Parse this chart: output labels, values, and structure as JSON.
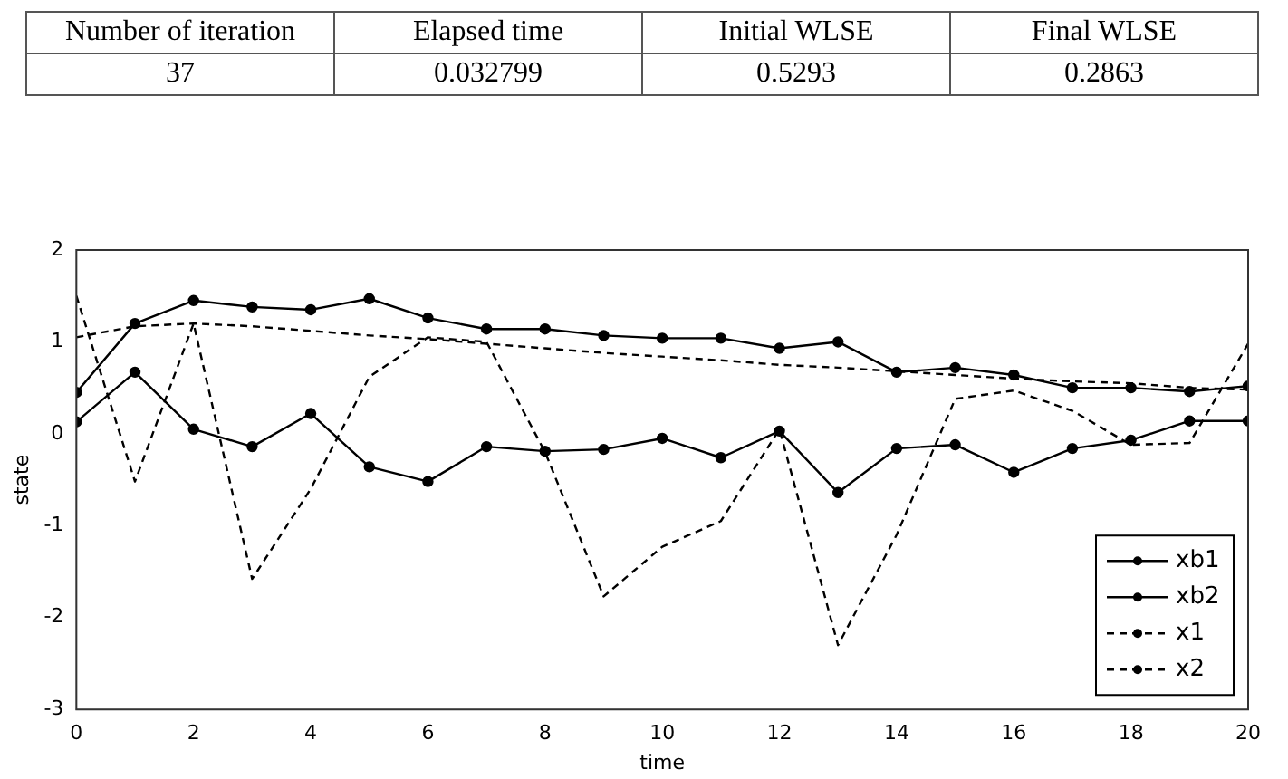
{
  "chart_data": {
    "type": "line",
    "xlabel": "time",
    "ylabel": "state",
    "annotations": [
      "Number of iteration",
      "Elapsed time",
      "Initial WLSE",
      "Final WLSE",
      "37",
      "0.032799",
      "0.5293",
      "0.2863"
    ],
    "x": [
      0,
      1,
      2,
      3,
      4,
      5,
      6,
      7,
      8,
      9,
      10,
      11,
      12,
      13,
      14,
      15,
      16,
      17,
      18,
      19,
      20
    ],
    "series": [
      {
        "name": "xb1",
        "color": "#000000",
        "line_style": "solid",
        "marker": "circle",
        "values": [
          0.45,
          1.2,
          1.45,
          1.38,
          1.35,
          1.47,
          1.26,
          1.14,
          1.14,
          1.07,
          1.04,
          1.04,
          0.93,
          1.0,
          0.67,
          0.72,
          0.64,
          0.5,
          0.5,
          0.46,
          0.52
        ]
      },
      {
        "name": "xb2",
        "color": "#000000",
        "line_style": "solid",
        "marker": "circle",
        "values": [
          0.13,
          0.67,
          0.05,
          -0.14,
          0.22,
          -0.36,
          -0.52,
          -0.14,
          -0.19,
          -0.17,
          -0.05,
          -0.26,
          0.03,
          -0.64,
          -0.16,
          -0.12,
          -0.42,
          -0.16,
          -0.07,
          0.14,
          0.14
        ]
      },
      {
        "name": "x1",
        "color": "#000000",
        "line_style": "dashed",
        "marker": "none",
        "values": [
          1.05,
          1.17,
          1.2,
          1.17,
          1.12,
          1.07,
          1.03,
          0.98,
          0.93,
          0.88,
          0.84,
          0.8,
          0.75,
          0.72,
          0.68,
          0.64,
          0.6,
          0.57,
          0.55,
          0.5,
          0.48
        ]
      },
      {
        "name": "x2",
        "color": "#000000",
        "line_style": "dashed",
        "marker": "none",
        "values": [
          1.5,
          -0.52,
          1.2,
          -1.58,
          -0.6,
          0.62,
          1.05,
          1.0,
          -0.2,
          -1.77,
          -1.23,
          -0.95,
          0.05,
          -2.3,
          -1.1,
          0.38,
          0.47,
          0.25,
          -0.12,
          -0.1,
          0.98
        ]
      }
    ],
    "xlim": [
      0,
      20
    ],
    "xticks": [
      0,
      2,
      4,
      6,
      8,
      10,
      12,
      14,
      16,
      18,
      20
    ],
    "ylim": [
      -3,
      2
    ],
    "yticks": [
      -3,
      -2,
      -1,
      0,
      1,
      2
    ],
    "grid": false,
    "legend": "bottom right"
  }
}
